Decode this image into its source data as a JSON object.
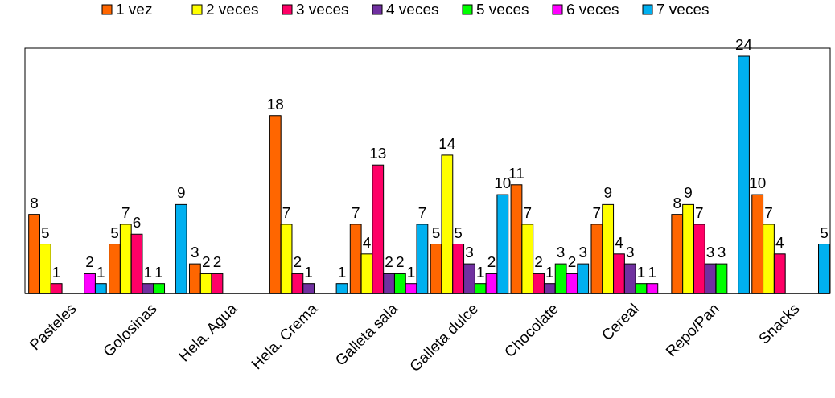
{
  "chart_data": {
    "type": "bar",
    "categories": [
      "Pasteles",
      "Golosinas",
      "Hela. Agua",
      "Hela. Crema",
      "Galleta sala",
      "Galleta dulce",
      "Chocolate",
      "Cereal",
      "Repo/Pan",
      "Snacks"
    ],
    "series": [
      {
        "name": "1 vez",
        "color": "#ff6600",
        "values": [
          8,
          5,
          3,
          18,
          7,
          5,
          11,
          7,
          8,
          10
        ]
      },
      {
        "name": "2 veces",
        "color": "#ffff00",
        "values": [
          5,
          7,
          2,
          7,
          4,
          14,
          7,
          9,
          9,
          7
        ]
      },
      {
        "name": "3 veces",
        "color": "#ff0066",
        "values": [
          1,
          6,
          2,
          2,
          13,
          5,
          2,
          4,
          7,
          4
        ]
      },
      {
        "name": "4 veces",
        "color": "#7030a0",
        "values": [
          null,
          1,
          null,
          1,
          2,
          3,
          1,
          3,
          3,
          null
        ]
      },
      {
        "name": "5 veces",
        "color": "#00ff00",
        "values": [
          null,
          1,
          null,
          null,
          2,
          1,
          3,
          1,
          3,
          null
        ]
      },
      {
        "name": "6 veces",
        "color": "#ff00ff",
        "values": [
          2,
          null,
          null,
          null,
          1,
          2,
          2,
          1,
          null,
          null
        ]
      },
      {
        "name": "7 veces",
        "color": "#00b0f0",
        "values": [
          1,
          9,
          null,
          1,
          7,
          10,
          3,
          null,
          24,
          5
        ]
      }
    ],
    "data_labels": true,
    "legend": "top"
  }
}
